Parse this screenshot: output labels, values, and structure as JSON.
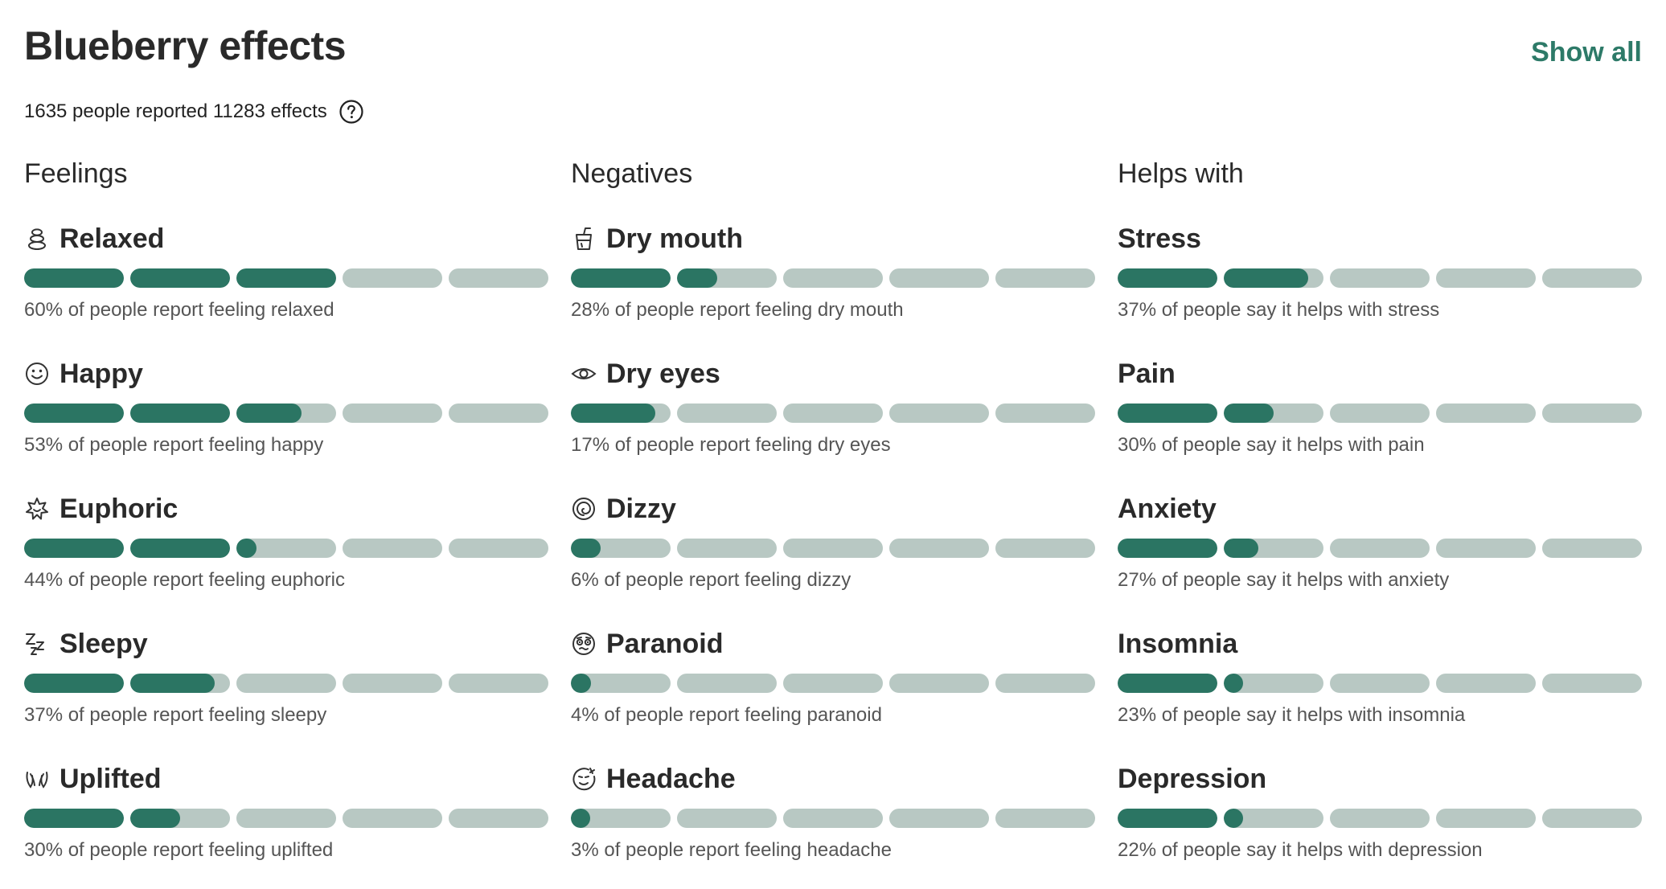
{
  "header": {
    "title": "Blueberry effects",
    "show_all": "Show all",
    "summary": "1635 people reported 11283 effects",
    "help_icon": "question-circle-icon"
  },
  "colors": {
    "accent": "#2d7a68",
    "bar_fill": "#2b7563",
    "bar_track": "#b8c8c3"
  },
  "columns": [
    {
      "header": "Feelings",
      "items": [
        {
          "name": "Relaxed",
          "icon": "relaxed-icon",
          "percent": 60,
          "desc": "60% of people report feeling relaxed"
        },
        {
          "name": "Happy",
          "icon": "happy-icon",
          "percent": 53,
          "desc": "53% of people report feeling happy"
        },
        {
          "name": "Euphoric",
          "icon": "euphoric-icon",
          "percent": 44,
          "desc": "44% of people report feeling euphoric"
        },
        {
          "name": "Sleepy",
          "icon": "sleepy-icon",
          "percent": 37,
          "desc": "37% of people report feeling sleepy"
        },
        {
          "name": "Uplifted",
          "icon": "uplifted-icon",
          "percent": 30,
          "desc": "30% of people report feeling uplifted"
        }
      ]
    },
    {
      "header": "Negatives",
      "items": [
        {
          "name": "Dry mouth",
          "icon": "dry-mouth-icon",
          "percent": 28,
          "desc": "28% of people report feeling dry mouth"
        },
        {
          "name": "Dry eyes",
          "icon": "dry-eyes-icon",
          "percent": 17,
          "desc": "17% of people report feeling dry eyes"
        },
        {
          "name": "Dizzy",
          "icon": "dizzy-icon",
          "percent": 6,
          "desc": "6% of people report feeling dizzy"
        },
        {
          "name": "Paranoid",
          "icon": "paranoid-icon",
          "percent": 4,
          "desc": "4% of people report feeling paranoid"
        },
        {
          "name": "Headache",
          "icon": "headache-icon",
          "percent": 3,
          "desc": "3% of people report feeling headache"
        }
      ]
    },
    {
      "header": "Helps with",
      "items": [
        {
          "name": "Stress",
          "icon": "",
          "percent": 37,
          "desc": "37% of people say it helps with stress"
        },
        {
          "name": "Pain",
          "icon": "",
          "percent": 30,
          "desc": "30% of people say it helps with pain"
        },
        {
          "name": "Anxiety",
          "icon": "",
          "percent": 27,
          "desc": "27% of people say it helps with anxiety"
        },
        {
          "name": "Insomnia",
          "icon": "",
          "percent": 23,
          "desc": "23% of people say it helps with insomnia"
        },
        {
          "name": "Depression",
          "icon": "",
          "percent": 22,
          "desc": "22% of people say it helps with depression"
        }
      ]
    }
  ]
}
